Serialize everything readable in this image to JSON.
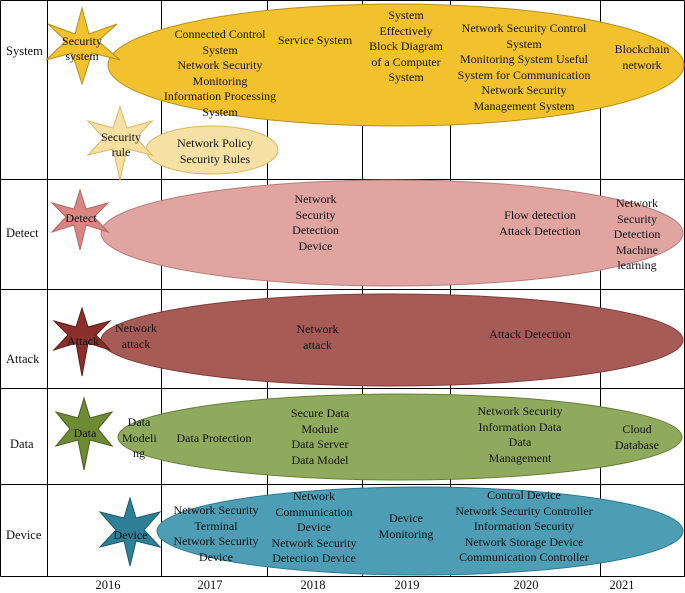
{
  "rows": [
    {
      "id": "system",
      "label": "System"
    },
    {
      "id": "detect",
      "label": "Detect"
    },
    {
      "id": "attack",
      "label": "Attack"
    },
    {
      "id": "data",
      "label": "Data"
    },
    {
      "id": "device",
      "label": "Device"
    }
  ],
  "years": [
    "2016",
    "2017",
    "2018",
    "2019",
    "2020",
    "2021"
  ],
  "colors": {
    "system": "#F2C12E",
    "system_rule": "#F7E0A3",
    "detect": "#E0A4A1",
    "detect_star": "#D98683",
    "attack": "#A75B56",
    "attack_star": "#8B2F2A",
    "data": "#8FAA5C",
    "data_star": "#6E8A34",
    "device": "#4D9DB5",
    "device_star": "#2F7F96",
    "grid": "#000000"
  },
  "stars": {
    "security_system": "Security\nsystem",
    "security_rule": "Security\nrule",
    "detect": "Detect",
    "attack": "Attack",
    "data": "Data",
    "device": "Device"
  },
  "labels": {
    "system_1": "Connected Control\nSystem\nNetwork Security\nMonitoring\nInformation Processing\nSystem",
    "system_2": "Service System",
    "system_3": "System\nEffectively\nBlock Diagram\nof a Computer\nSystem",
    "system_4": "Network Security Control\nSystem\nMonitoring System Useful\nSystem for Communication\nNetwork Security\nManagement System",
    "system_5": "Blockchain\nnetwork",
    "rule_1": "Network Policy\nSecurity Rules",
    "detect_1": "Network\nSecurity\nDetection\nDevice",
    "detect_2": "Flow detection\nAttack Detection",
    "detect_3": "Network\nSecurity\nDetection\nMachine\nlearning",
    "attack_1": "Network\nattack",
    "attack_2": "Network\nattack",
    "attack_3": "Attack Detection",
    "data_1": "Data\nModeli\nng",
    "data_2": "Data Protection",
    "data_3": "Secure Data\nModule\nData Server\nData Model",
    "data_4": "Network Security\nInformation Data\nData\nManagement",
    "data_5": "Cloud\nDatabase",
    "device_1": "Network Security\nTerminal\nNetwork Security\nDevice",
    "device_2": "Network\nCommunication\nDevice\nNetwork Security\nDetection Device",
    "device_3": "Device\nMonitoring",
    "device_4": "Control Device\nNetwork Security Controller\nInformation Security\nNetwork Storage Device\nCommunication Controller"
  }
}
